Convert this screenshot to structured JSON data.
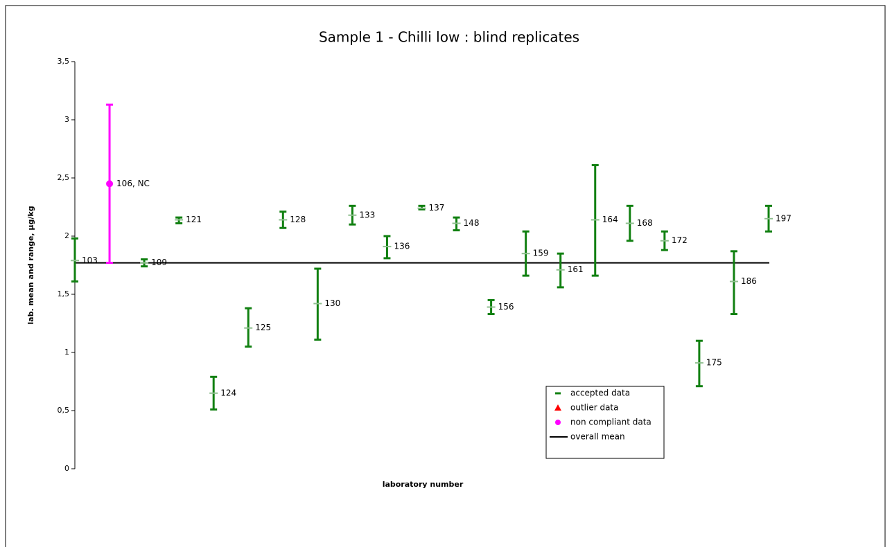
{
  "chart_data": {
    "type": "errorbar",
    "title": "Sample 1 - Chilli low : blind replicates",
    "x_label": "laboratory number",
    "y_label": "lab. mean and range, µg/kg",
    "categories": [
      "103",
      "106, NC",
      "109",
      "121",
      "124",
      "125",
      "128",
      "130",
      "133",
      "136",
      "137",
      "148",
      "156",
      "159",
      "161",
      "164",
      "168",
      "172",
      "175",
      "186",
      "197"
    ],
    "series": [
      {
        "name": "accepted data",
        "color": "#118011",
        "marker": "dash",
        "values": [
          1.79,
          null,
          1.77,
          2.14,
          0.65,
          1.21,
          2.14,
          1.42,
          2.18,
          1.91,
          2.24,
          2.11,
          1.39,
          1.85,
          1.71,
          2.14,
          2.11,
          1.96,
          0.91,
          1.61,
          2.15
        ],
        "low": [
          1.61,
          null,
          1.74,
          2.11,
          0.51,
          1.05,
          2.07,
          1.11,
          2.1,
          1.81,
          2.23,
          2.05,
          1.33,
          1.66,
          1.56,
          1.66,
          1.96,
          1.88,
          0.71,
          1.33,
          2.04
        ],
        "high": [
          1.98,
          null,
          1.8,
          2.16,
          0.79,
          1.38,
          2.21,
          1.72,
          2.26,
          2.0,
          2.26,
          2.16,
          1.45,
          2.04,
          1.85,
          2.61,
          2.26,
          2.04,
          1.1,
          1.87,
          2.26
        ]
      },
      {
        "name": "outlier data",
        "color": "#ff0000",
        "marker": "triangle",
        "values": [
          null,
          null,
          null,
          null,
          null,
          null,
          null,
          null,
          null,
          null,
          null,
          null,
          null,
          null,
          null,
          null,
          null,
          null,
          null,
          null,
          null
        ],
        "low": [
          null,
          null,
          null,
          null,
          null,
          null,
          null,
          null,
          null,
          null,
          null,
          null,
          null,
          null,
          null,
          null,
          null,
          null,
          null,
          null,
          null
        ],
        "high": [
          null,
          null,
          null,
          null,
          null,
          null,
          null,
          null,
          null,
          null,
          null,
          null,
          null,
          null,
          null,
          null,
          null,
          null,
          null,
          null,
          null
        ]
      },
      {
        "name": "non compliant data",
        "color": "#ff00ff",
        "marker": "circle",
        "values": [
          null,
          2.45,
          null,
          null,
          null,
          null,
          null,
          null,
          null,
          null,
          null,
          null,
          null,
          null,
          null,
          null,
          null,
          null,
          null,
          null,
          null
        ],
        "low": [
          null,
          1.77,
          null,
          null,
          null,
          null,
          null,
          null,
          null,
          null,
          null,
          null,
          null,
          null,
          null,
          null,
          null,
          null,
          null,
          null,
          null
        ],
        "high": [
          null,
          3.13,
          null,
          null,
          null,
          null,
          null,
          null,
          null,
          null,
          null,
          null,
          null,
          null,
          null,
          null,
          null,
          null,
          null,
          null,
          null
        ]
      }
    ],
    "mean": {
      "name": "overall mean",
      "value": 1.77,
      "color": "#000000"
    },
    "ylim": [
      0,
      3.5
    ],
    "yticks": [
      0,
      {
        "value": 0.5,
        "label": "0,5"
      },
      1,
      {
        "value": 1.5,
        "label": "1,5"
      },
      2,
      {
        "value": 2.5,
        "label": "2,5"
      },
      3,
      {
        "value": 3.5,
        "label": "3,5"
      }
    ],
    "legend": "lower-right"
  }
}
